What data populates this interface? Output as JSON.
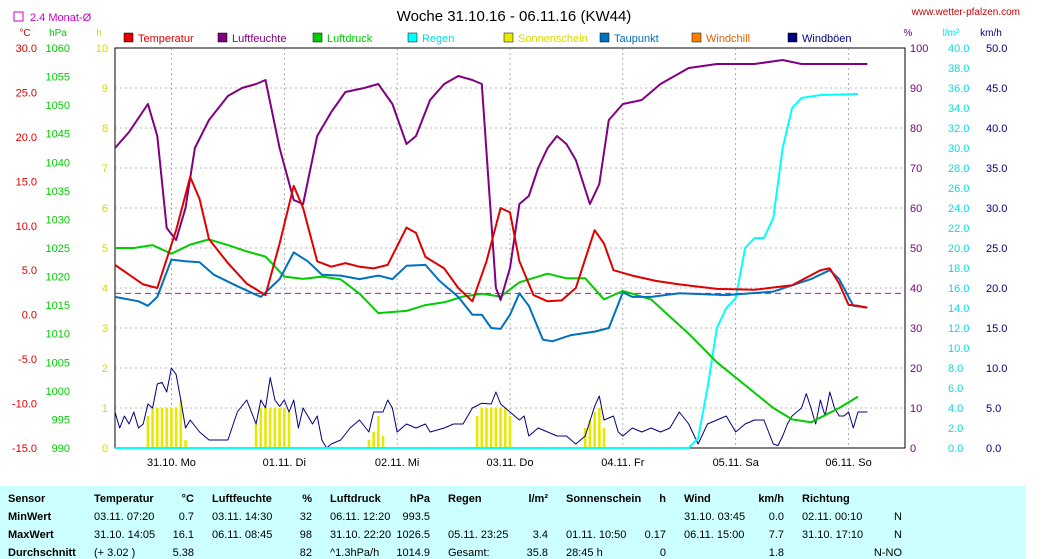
{
  "page": {
    "title": "Woche 31.10.16 - 06.11.16 (KW44)",
    "site": "www.wetter-pfalzen.com",
    "monthly_avg_label": "2.4 Monat-Ø"
  },
  "colors": {
    "temperature": "#e00000",
    "humidity": "#800080",
    "pressure": "#00cc00",
    "rain": "#00ffff",
    "sunshine": "#e8e800",
    "dewpoint": "#0070c0",
    "windchill": "#ff8000",
    "gusts": "#000080",
    "table_bg": "#ccffff",
    "avg_line": "#cc00cc"
  },
  "legend": [
    {
      "label": "Temperatur",
      "color": "#e00000",
      "text_color": "#e00000"
    },
    {
      "label": "Luftfeuchte",
      "color": "#800080",
      "text_color": "#800080"
    },
    {
      "label": "Luftdruck",
      "color": "#00cc00",
      "text_color": "#00cc00"
    },
    {
      "label": "Regen",
      "color": "#00ffff",
      "text_color": "#00e0e0"
    },
    {
      "label": "Sonnenschein",
      "color": "#e8e800",
      "text_color": "#d8d800"
    },
    {
      "label": "Taupunkt",
      "color": "#0070c0",
      "text_color": "#0070c0"
    },
    {
      "label": "Windchill",
      "color": "#ff8000",
      "text_color": "#e06000"
    },
    {
      "label": "Windböen",
      "color": "#000080",
      "text_color": "#000080"
    }
  ],
  "axes": {
    "temp_unit": "°C",
    "temp_ticks": [
      "30.0",
      "25.0",
      "20.0",
      "15.0",
      "10.0",
      "5.0",
      "0.0",
      "-5.0",
      "-10.0",
      "-15.0"
    ],
    "pressure_unit": "hPa",
    "pressure_ticks": [
      "1060",
      "1055",
      "1050",
      "1045",
      "1040",
      "1035",
      "1030",
      "1025",
      "1020",
      "1015",
      "1010",
      "1005",
      "1000",
      "995",
      "990"
    ],
    "sun_unit": "h",
    "sun_ticks": [
      "10",
      "9",
      "8",
      "7",
      "6",
      "5",
      "4",
      "3",
      "2",
      "1",
      "0"
    ],
    "humidity_unit": "%",
    "humidity_ticks": [
      "100",
      "90",
      "80",
      "70",
      "60",
      "50",
      "40",
      "30",
      "20",
      "10",
      "0"
    ],
    "rain_unit": "l/m²",
    "rain_ticks": [
      "40.0",
      "38.0",
      "36.0",
      "34.0",
      "32.0",
      "30.0",
      "28.0",
      "26.0",
      "24.0",
      "22.0",
      "20.0",
      "18.0",
      "16.0",
      "14.0",
      "12.0",
      "10.0",
      "8.0",
      "6.0",
      "4.0",
      "2.0",
      "0.0"
    ],
    "wind_unit": "km/h",
    "wind_ticks": [
      "50.0",
      "45.0",
      "40.0",
      "35.0",
      "30.0",
      "25.0",
      "20.0",
      "15.0",
      "10.0",
      "5.0",
      "0.0"
    ],
    "day_labels": [
      "31.10. Mo",
      "01.11. Di",
      "02.11. Mi",
      "03.11. Do",
      "04.11. Fr",
      "05.11. Sa",
      "06.11. So"
    ]
  },
  "chart_data": {
    "type": "line",
    "x_unit": "hours since 31.10. 00:00",
    "temperature_C": [
      [
        0,
        5.6
      ],
      [
        6,
        3.4
      ],
      [
        9,
        3.0
      ],
      [
        13,
        9.5
      ],
      [
        16,
        15.5
      ],
      [
        18,
        13
      ],
      [
        20,
        8.5
      ],
      [
        24,
        5.8
      ],
      [
        28,
        3.5
      ],
      [
        32,
        2.2
      ],
      [
        35,
        8
      ],
      [
        38,
        14.5
      ],
      [
        40,
        12
      ],
      [
        43,
        6
      ],
      [
        46,
        5.4
      ],
      [
        49,
        5.8
      ],
      [
        52,
        5.4
      ],
      [
        55,
        5.2
      ],
      [
        58,
        5.6
      ],
      [
        62,
        9.8
      ],
      [
        64,
        9.2
      ],
      [
        66,
        6.5
      ],
      [
        70,
        5.2
      ],
      [
        73,
        3
      ],
      [
        76,
        1.5
      ],
      [
        79,
        6
      ],
      [
        82,
        12
      ],
      [
        84,
        11.5
      ],
      [
        86,
        6
      ],
      [
        89,
        2.2
      ],
      [
        92,
        1.5
      ],
      [
        95,
        1.6
      ],
      [
        98,
        3
      ],
      [
        102,
        9.5
      ],
      [
        104,
        8
      ],
      [
        106,
        5
      ],
      [
        110,
        4.4
      ],
      [
        115,
        3.8
      ],
      [
        120,
        3.4
      ],
      [
        128,
        2.9
      ],
      [
        136,
        2.8
      ],
      [
        144,
        3.3
      ],
      [
        150,
        5
      ],
      [
        152,
        5.2
      ],
      [
        154,
        3.5
      ],
      [
        156,
        1.1
      ],
      [
        158,
        1.0
      ],
      [
        160,
        0.8
      ]
    ],
    "dewpoint_C": [
      [
        0,
        2
      ],
      [
        5,
        1.5
      ],
      [
        7,
        1.0
      ],
      [
        9,
        2
      ],
      [
        12,
        6.2
      ],
      [
        15,
        6
      ],
      [
        18,
        5.9
      ],
      [
        21,
        4.5
      ],
      [
        26,
        3.2
      ],
      [
        31,
        2
      ],
      [
        35,
        4
      ],
      [
        38,
        7
      ],
      [
        41,
        6
      ],
      [
        44,
        4.5
      ],
      [
        48,
        4.4
      ],
      [
        52,
        4
      ],
      [
        56,
        4.4
      ],
      [
        59,
        4
      ],
      [
        62,
        5.5
      ],
      [
        66,
        5.6
      ],
      [
        69,
        3.8
      ],
      [
        73,
        2
      ],
      [
        76,
        0
      ],
      [
        78,
        0.0
      ],
      [
        80,
        -1.5
      ],
      [
        82,
        -1.6
      ],
      [
        84,
        0
      ],
      [
        86,
        2.4
      ],
      [
        88,
        1
      ],
      [
        91,
        -2.8
      ],
      [
        93,
        -3
      ],
      [
        97,
        -2.3
      ],
      [
        102,
        -1.9
      ],
      [
        105,
        -1.5
      ],
      [
        108,
        2.5
      ],
      [
        110,
        2
      ],
      [
        114,
        2
      ],
      [
        120,
        2.4
      ],
      [
        130,
        2.2
      ],
      [
        140,
        2.6
      ],
      [
        148,
        4
      ],
      [
        152,
        5
      ],
      [
        154,
        4
      ],
      [
        157,
        1.0
      ],
      [
        160,
        0.8
      ]
    ],
    "humidity_pct": [
      [
        0,
        75
      ],
      [
        3,
        79
      ],
      [
        7,
        86
      ],
      [
        9,
        78
      ],
      [
        11,
        55
      ],
      [
        13,
        52
      ],
      [
        15,
        60
      ],
      [
        17,
        75
      ],
      [
        20,
        82
      ],
      [
        24,
        88
      ],
      [
        27,
        90
      ],
      [
        30,
        91
      ],
      [
        32,
        92
      ],
      [
        35,
        75
      ],
      [
        38,
        62
      ],
      [
        40,
        61
      ],
      [
        43,
        78
      ],
      [
        46,
        84
      ],
      [
        49,
        89
      ],
      [
        53,
        90
      ],
      [
        56,
        91
      ],
      [
        59,
        86
      ],
      [
        62,
        76
      ],
      [
        64,
        78
      ],
      [
        67,
        87
      ],
      [
        70,
        91
      ],
      [
        73,
        93
      ],
      [
        76,
        92
      ],
      [
        78,
        91
      ],
      [
        79,
        74
      ],
      [
        81,
        40
      ],
      [
        82,
        37
      ],
      [
        84,
        45
      ],
      [
        86,
        61
      ],
      [
        88,
        63
      ],
      [
        90,
        70
      ],
      [
        92,
        75
      ],
      [
        94,
        78
      ],
      [
        96,
        76
      ],
      [
        98,
        72
      ],
      [
        101,
        61
      ],
      [
        103,
        66
      ],
      [
        105,
        82
      ],
      [
        108,
        86
      ],
      [
        112,
        87
      ],
      [
        116,
        91
      ],
      [
        122,
        95
      ],
      [
        128,
        96
      ],
      [
        136,
        96
      ],
      [
        142,
        97
      ],
      [
        146,
        96
      ],
      [
        149,
        96
      ],
      [
        160,
        96
      ]
    ],
    "pressure_hPa": [
      [
        0,
        1025
      ],
      [
        4,
        1025
      ],
      [
        8,
        1025.5
      ],
      [
        12,
        1024
      ],
      [
        16,
        1025.6
      ],
      [
        20,
        1026.5
      ],
      [
        24,
        1025.5
      ],
      [
        28,
        1024.4
      ],
      [
        32,
        1023.5
      ],
      [
        36,
        1020
      ],
      [
        40,
        1019.6
      ],
      [
        44,
        1020
      ],
      [
        48,
        1019.5
      ],
      [
        52,
        1017
      ],
      [
        56,
        1013.6
      ],
      [
        62,
        1014
      ],
      [
        66,
        1015
      ],
      [
        70,
        1015.5
      ],
      [
        74,
        1016.5
      ],
      [
        78,
        1017
      ],
      [
        82,
        1016.5
      ],
      [
        86,
        1019
      ],
      [
        92,
        1020.5
      ],
      [
        96,
        1019.7
      ],
      [
        100,
        1019.7
      ],
      [
        104,
        1016
      ],
      [
        108,
        1017.5
      ],
      [
        114,
        1016
      ],
      [
        118,
        1013
      ],
      [
        122,
        1010
      ],
      [
        128,
        1005
      ],
      [
        134,
        1001
      ],
      [
        140,
        997
      ],
      [
        144,
        995
      ],
      [
        148,
        994.5
      ],
      [
        154,
        997
      ],
      [
        158,
        999
      ]
    ],
    "rain_mm": [
      [
        0,
        0
      ],
      [
        122,
        0
      ],
      [
        124,
        1
      ],
      [
        126,
        6
      ],
      [
        128,
        12
      ],
      [
        130,
        14
      ],
      [
        132,
        15
      ],
      [
        134,
        20
      ],
      [
        136,
        21
      ],
      [
        138,
        21
      ],
      [
        140,
        23
      ],
      [
        142,
        30
      ],
      [
        144,
        34
      ],
      [
        146,
        35
      ],
      [
        150,
        35.3
      ],
      [
        158,
        35.4
      ]
    ],
    "sunshine_h_bars": [
      {
        "x": 7,
        "h": 0.8
      },
      {
        "x": 8,
        "h": 1.0
      },
      {
        "x": 9,
        "h": 1.0
      },
      {
        "x": 10,
        "h": 1.0
      },
      {
        "x": 11,
        "h": 1.0
      },
      {
        "x": 12,
        "h": 1.0
      },
      {
        "x": 13,
        "h": 1.0
      },
      {
        "x": 14,
        "h": 1.2
      },
      {
        "x": 15,
        "h": 0.2
      },
      {
        "x": 30,
        "h": 0.6
      },
      {
        "x": 31,
        "h": 1.0
      },
      {
        "x": 32,
        "h": 1.0
      },
      {
        "x": 33,
        "h": 1.0
      },
      {
        "x": 34,
        "h": 1.0
      },
      {
        "x": 35,
        "h": 1.0
      },
      {
        "x": 36,
        "h": 1.0
      },
      {
        "x": 37,
        "h": 0.9
      },
      {
        "x": 54,
        "h": 0.2
      },
      {
        "x": 55,
        "h": 0.4
      },
      {
        "x": 56,
        "h": 0.8
      },
      {
        "x": 57,
        "h": 0.3
      },
      {
        "x": 77,
        "h": 0.8
      },
      {
        "x": 78,
        "h": 1.0
      },
      {
        "x": 79,
        "h": 1.0
      },
      {
        "x": 80,
        "h": 1.0
      },
      {
        "x": 81,
        "h": 1.0
      },
      {
        "x": 82,
        "h": 1.0
      },
      {
        "x": 83,
        "h": 1.0
      },
      {
        "x": 84,
        "h": 0.8
      },
      {
        "x": 100,
        "h": 0.5
      },
      {
        "x": 101,
        "h": 0.7
      },
      {
        "x": 102,
        "h": 0.9
      },
      {
        "x": 103,
        "h": 1.0
      },
      {
        "x": 104,
        "h": 0.5
      }
    ],
    "wind_gusts_kmh": [
      [
        0,
        4.5
      ],
      [
        1,
        2.5
      ],
      [
        2,
        4
      ],
      [
        3,
        3
      ],
      [
        4,
        4.5
      ],
      [
        5,
        2.5
      ],
      [
        6,
        3
      ],
      [
        7,
        5.5
      ],
      [
        8,
        5
      ],
      [
        9,
        8
      ],
      [
        10,
        8.2
      ],
      [
        11,
        7
      ],
      [
        12,
        10
      ],
      [
        13,
        9.2
      ],
      [
        14,
        6
      ],
      [
        15,
        2.5
      ],
      [
        16,
        3.5
      ],
      [
        18,
        2
      ],
      [
        20,
        1
      ],
      [
        22,
        1
      ],
      [
        24,
        1
      ],
      [
        26,
        4.5
      ],
      [
        28,
        6
      ],
      [
        30,
        3
      ],
      [
        31,
        6
      ],
      [
        32,
        5
      ],
      [
        33,
        8.8
      ],
      [
        34,
        6
      ],
      [
        35,
        5.2
      ],
      [
        36,
        6
      ],
      [
        37,
        4.5
      ],
      [
        38,
        6
      ],
      [
        39,
        2.5
      ],
      [
        40,
        5
      ],
      [
        41,
        4
      ],
      [
        42,
        3
      ],
      [
        43,
        4
      ],
      [
        44,
        1
      ],
      [
        45,
        0
      ],
      [
        46,
        0.5
      ],
      [
        48,
        1
      ],
      [
        50,
        2.5
      ],
      [
        52,
        3.5
      ],
      [
        54,
        2
      ],
      [
        55,
        4.5
      ],
      [
        57,
        4.5
      ],
      [
        58,
        6
      ],
      [
        59,
        5
      ],
      [
        60,
        2
      ],
      [
        62,
        3
      ],
      [
        64,
        2.5
      ],
      [
        66,
        3
      ],
      [
        67,
        2
      ],
      [
        70,
        2.5
      ],
      [
        72,
        3
      ],
      [
        74,
        3
      ],
      [
        76,
        5
      ],
      [
        78,
        5.6
      ],
      [
        80,
        5.5
      ],
      [
        81,
        7
      ],
      [
        82,
        5.5
      ],
      [
        83,
        5
      ],
      [
        84,
        4.5
      ],
      [
        86,
        3.5
      ],
      [
        87,
        4
      ],
      [
        88,
        1.5
      ],
      [
        90,
        2.5
      ],
      [
        92,
        2
      ],
      [
        94,
        1.5
      ],
      [
        96,
        1.5
      ],
      [
        98,
        0.5
      ],
      [
        100,
        1.5
      ],
      [
        102,
        5.2
      ],
      [
        103,
        6.5
      ],
      [
        104,
        3.5
      ],
      [
        106,
        4
      ],
      [
        107,
        2
      ],
      [
        108,
        1.5
      ],
      [
        110,
        2.5
      ],
      [
        112,
        2
      ],
      [
        114,
        2.5
      ],
      [
        116,
        2
      ],
      [
        118,
        2.5
      ],
      [
        120,
        4.5
      ],
      [
        122,
        3
      ],
      [
        124,
        0.5
      ],
      [
        126,
        3
      ],
      [
        128,
        3.5
      ],
      [
        130,
        4
      ],
      [
        132,
        2
      ],
      [
        134,
        3
      ],
      [
        136,
        3.5
      ],
      [
        138,
        3.5
      ],
      [
        140,
        0.5
      ],
      [
        141,
        0.3
      ],
      [
        142,
        1.5
      ],
      [
        143,
        3
      ],
      [
        144,
        4
      ],
      [
        146,
        5
      ],
      [
        147,
        6.8
      ],
      [
        148,
        5
      ],
      [
        149,
        3
      ],
      [
        150,
        6
      ],
      [
        151,
        4
      ],
      [
        152,
        7
      ],
      [
        153,
        5
      ],
      [
        154,
        4
      ],
      [
        155,
        4
      ],
      [
        156,
        4.5
      ],
      [
        157,
        2.5
      ],
      [
        158,
        4.5
      ],
      [
        159,
        4.5
      ],
      [
        160,
        4.5
      ]
    ],
    "monthly_avg_C": 2.4,
    "ylim_temp": [
      -15,
      30
    ]
  },
  "table": {
    "headers": [
      {
        "label": "Sensor",
        "unit": ""
      },
      {
        "label": "Temperatur",
        "unit": "°C"
      },
      {
        "label": "Luftfeuchte",
        "unit": "%"
      },
      {
        "label": "Luftdruck",
        "unit": "hPa"
      },
      {
        "label": "Regen",
        "unit": "l/m²"
      },
      {
        "label": "Sonnenschein",
        "unit": "h"
      },
      {
        "label": "Wind",
        "unit": "km/h"
      },
      {
        "label": "Richtung",
        "unit": ""
      }
    ],
    "rows": [
      {
        "label": "MinWert",
        "cells": [
          [
            "03.11.  07:20",
            "0.7"
          ],
          [
            "03.11.  14:30",
            "32"
          ],
          [
            "06.11.  12:20",
            "993.5"
          ],
          [
            "",
            ""
          ],
          [
            "",
            ""
          ],
          [
            "31.10.  03:45",
            "0.0"
          ],
          [
            "02.11.  00:10",
            "N"
          ]
        ]
      },
      {
        "label": "MaxWert",
        "cells": [
          [
            "31.10.  14:05",
            "16.1"
          ],
          [
            "06.11.  08:45",
            "98"
          ],
          [
            "31.10.  22:20",
            "1026.5"
          ],
          [
            "05.11.  23:25",
            "3.4"
          ],
          [
            "01.11.  10:50",
            "0.17"
          ],
          [
            "06.11.  15:00",
            "7.7"
          ],
          [
            "31.10.  17:10",
            "N"
          ]
        ]
      },
      {
        "label": "Durchschnitt",
        "cells": [
          [
            "(+ 3.02 )",
            "5.38"
          ],
          [
            "",
            "82"
          ],
          [
            "^1.3hPa/h",
            "1014.9"
          ],
          [
            "Gesamt:",
            "35.8"
          ],
          [
            "28:45 h",
            "0"
          ],
          [
            "",
            "1.8"
          ],
          [
            "",
            "N-NO"
          ]
        ]
      }
    ]
  }
}
